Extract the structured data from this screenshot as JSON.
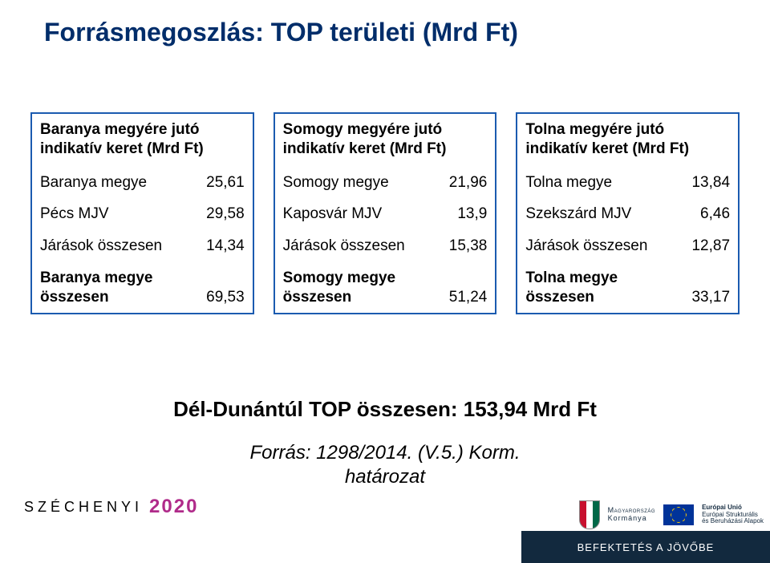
{
  "title": "Forrásmegoszlás: TOP területi (Mrd Ft)",
  "tables": [
    {
      "header": "Baranya megyére jutó indikatív keret (Mrd Ft)",
      "rows": [
        {
          "label": "Baranya megye",
          "value": "25,61",
          "bold": false
        },
        {
          "label": "Pécs MJV",
          "value": "29,58",
          "bold": false
        },
        {
          "label": "Járások összesen",
          "value": "14,34",
          "bold": false
        },
        {
          "label": "Baranya megye összesen",
          "value": "69,53",
          "bold": true
        }
      ]
    },
    {
      "header": "Somogy megyére jutó indikatív keret (Mrd Ft)",
      "rows": [
        {
          "label": "Somogy megye",
          "value": "21,96",
          "bold": false
        },
        {
          "label": "Kaposvár MJV",
          "value": "13,9",
          "bold": false
        },
        {
          "label": "Járások összesen",
          "value": "15,38",
          "bold": false
        },
        {
          "label": "Somogy megye összesen",
          "value": "51,24",
          "bold": true
        }
      ]
    },
    {
      "header": "Tolna megyére jutó indikatív keret (Mrd Ft)",
      "rows": [
        {
          "label": "Tolna megye",
          "value": "13,84",
          "bold": false
        },
        {
          "label": "Szekszárd MJV",
          "value": "6,46",
          "bold": false
        },
        {
          "label": "Járások összesen",
          "value": "12,87",
          "bold": false
        },
        {
          "label": "Tolna megye összesen",
          "value": "33,17",
          "bold": true
        }
      ]
    }
  ],
  "summary": "Dél-Dunántúl TOP összesen: 153,94 Mrd Ft",
  "source_line1": "Forrás: 1298/2014. (V.5.) Korm.",
  "source_line2": "határozat",
  "footer": {
    "szechenyi": "SZÉCHENYI",
    "year": "2020",
    "eu_line1": "Európai Unió",
    "eu_line2": "Európai Strukturális",
    "eu_line3": "és Beruházási Alapok",
    "gov_line1": "Magyarország",
    "gov_line2": "Kormánya",
    "tagline": "BEFEKTETÉS A JÖVŐBE"
  },
  "colors": {
    "title": "#002d6a",
    "table_border": "#1b5bb0",
    "footer_bar": "#12293e",
    "year": "#b02b8a"
  }
}
